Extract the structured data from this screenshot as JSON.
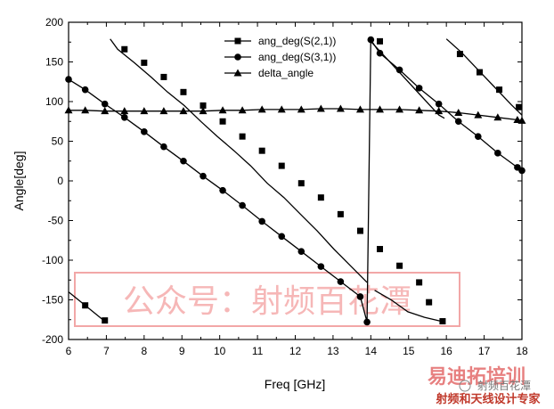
{
  "chart_data": {
    "type": "line",
    "xlabel": "Freq [GHz]",
    "ylabel": "Angle[deg]",
    "xlim": [
      6,
      18
    ],
    "ylim": [
      -200,
      200
    ],
    "x_ticks": [
      "6",
      "7",
      "8",
      "9",
      "10",
      "11",
      "12",
      "13",
      "14",
      "15",
      "16",
      "17",
      "18"
    ],
    "y_ticks": [
      "200",
      "150",
      "100",
      "50",
      "0",
      "-50",
      "-100",
      "-150",
      "-200"
    ],
    "grid": false,
    "legend_position": "top-center",
    "series": [
      {
        "name": "ang_deg(S(2,1))",
        "marker": "square",
        "segments": [
          {
            "x": [
              6.0,
              6.44,
              6.88,
              7.0
            ],
            "y": [
              -140,
              -157,
              -174,
              -178
            ]
          },
          {
            "x": [
              7.1,
              7.3,
              7.74,
              8.18,
              8.62,
              9.06,
              9.5,
              9.94,
              10.38,
              10.82,
              11.26,
              11.7,
              12.14,
              12.58,
              13.02,
              13.46,
              13.9
            ],
            "y": [
              179,
              166,
              149,
              131,
              112,
              95,
              75,
              56,
              38,
              19,
              -3,
              -21,
              -42,
              -63,
              -86,
              -107,
              -128
            ]
          },
          {
            "x": [
              13.95,
              14.0,
              14.6,
              15.2,
              15.8,
              15.95
            ],
            "y": [
              179,
              176,
              145,
              114,
              83,
              79
            ]
          },
          {
            "x": [
              14.1,
              14.54,
              14.98,
              15.42,
              15.86
            ],
            "y": [
              -138,
              -150,
              -165,
              -172,
              -177
            ]
          },
          {
            "x": [
              16.0,
              16.4,
              16.84,
              17.28,
              17.72,
              18.0
            ],
            "y": [
              179,
              162,
              140,
              118,
              96,
              83
            ]
          }
        ],
        "points": [
          {
            "x": 6.44,
            "y": -157
          },
          {
            "x": 6.96,
            "y": -176
          },
          {
            "x": 7.48,
            "y": 166
          },
          {
            "x": 8.0,
            "y": 149
          },
          {
            "x": 8.52,
            "y": 131
          },
          {
            "x": 9.04,
            "y": 112
          },
          {
            "x": 9.56,
            "y": 95
          },
          {
            "x": 10.08,
            "y": 75
          },
          {
            "x": 10.6,
            "y": 56
          },
          {
            "x": 11.12,
            "y": 38
          },
          {
            "x": 11.64,
            "y": 19
          },
          {
            "x": 12.16,
            "y": -3
          },
          {
            "x": 12.68,
            "y": -21
          },
          {
            "x": 13.2,
            "y": -42
          },
          {
            "x": 13.72,
            "y": -63
          },
          {
            "x": 14.24,
            "y": -86
          },
          {
            "x": 14.76,
            "y": -107
          },
          {
            "x": 15.28,
            "y": -128
          },
          {
            "x": 15.54,
            "y": -153
          },
          {
            "x": 15.9,
            "y": -177
          },
          {
            "x": 14.24,
            "y": 176
          },
          {
            "x": 16.36,
            "y": 160
          },
          {
            "x": 16.88,
            "y": 137
          },
          {
            "x": 17.4,
            "y": 115
          },
          {
            "x": 17.92,
            "y": 93
          }
        ]
      },
      {
        "name": "ang_deg(S(3,1))",
        "marker": "circle",
        "x": [
          6.0,
          6.44,
          6.96,
          7.48,
          8.0,
          8.52,
          9.04,
          9.56,
          10.08,
          10.6,
          11.12,
          11.64,
          12.16,
          12.68,
          13.2,
          13.72,
          13.9,
          14.0,
          14.24,
          14.76,
          15.28,
          15.8,
          16.32,
          16.84,
          17.36,
          17.88,
          18.0
        ],
        "y": [
          128,
          115,
          97,
          80,
          62,
          43,
          25,
          6,
          -12,
          -31,
          -51,
          -70,
          -89,
          -108,
          -127,
          -146,
          -178,
          178,
          161,
          140,
          117,
          97,
          75,
          56,
          35,
          17,
          13
        ]
      },
      {
        "name": "delta_angle",
        "marker": "triangle",
        "x": [
          6.0,
          6.44,
          6.96,
          7.48,
          8.0,
          8.52,
          9.04,
          9.56,
          10.08,
          10.6,
          11.12,
          11.64,
          12.16,
          12.68,
          13.2,
          13.72,
          14.24,
          14.76,
          15.28,
          15.8,
          16.32,
          16.84,
          17.36,
          17.88,
          18.0
        ],
        "y": [
          89,
          89,
          88,
          88,
          88,
          88,
          88,
          88,
          89,
          89,
          90,
          90,
          90,
          91,
          91,
          90,
          90,
          90,
          89,
          88,
          86,
          83,
          80,
          77,
          76
        ]
      }
    ]
  },
  "watermarks": {
    "main": "公众号：射频百花潭",
    "corner_logo": "易迪拓培训",
    "corner_sub": "射频和天线设计专家",
    "corner_wechat": "射频百花潭"
  }
}
